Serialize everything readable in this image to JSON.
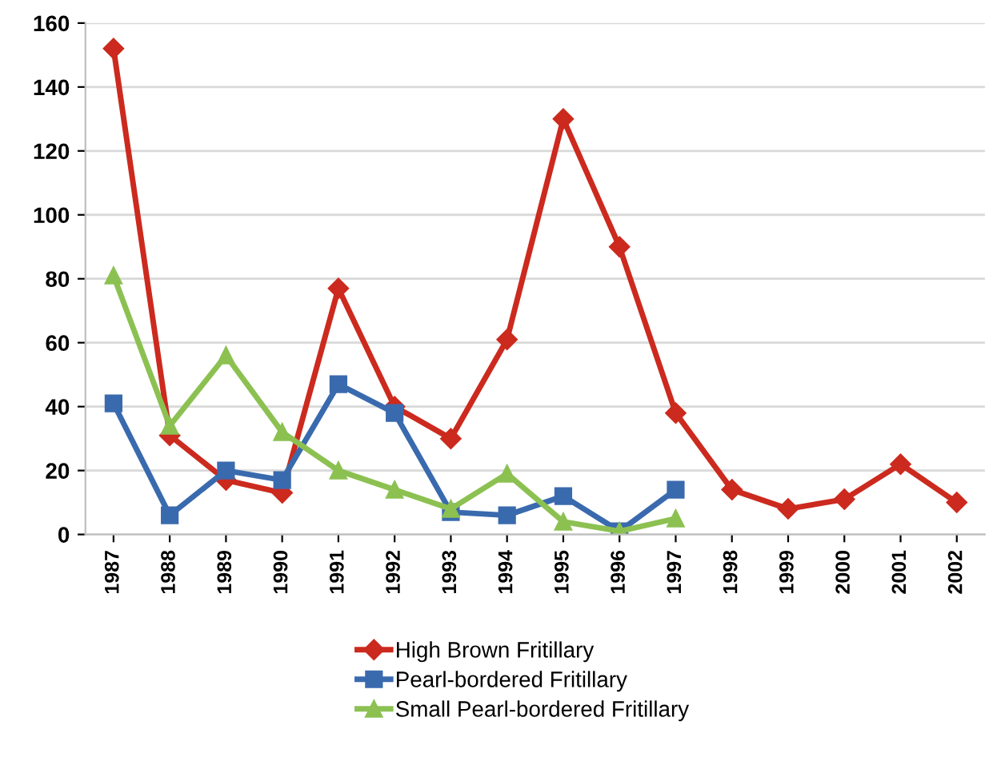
{
  "chart_data": {
    "type": "line",
    "categories": [
      "1987",
      "1988",
      "1989",
      "1990",
      "1991",
      "1992",
      "1993",
      "1994",
      "1995",
      "1996",
      "1997",
      "1998",
      "1999",
      "2000",
      "2001",
      "2002"
    ],
    "series": [
      {
        "name": "High Brown Fritillary",
        "color": "#cc2a1e",
        "marker": "diamond",
        "values": [
          152,
          31,
          17,
          13,
          77,
          40,
          30,
          61,
          130,
          90,
          38,
          14,
          8,
          11,
          22,
          10
        ]
      },
      {
        "name": "Pearl-bordered Fritillary",
        "color": "#3a6aae",
        "marker": "square",
        "values": [
          41,
          6,
          20,
          17,
          47,
          38,
          7,
          6,
          12,
          1,
          14,
          null,
          null,
          null,
          null,
          null
        ]
      },
      {
        "name": "Small Pearl-bordered Fritillary",
        "color": "#8cc152",
        "marker": "triangle",
        "values": [
          81,
          34,
          56,
          32,
          20,
          14,
          8,
          19,
          4,
          1,
          5,
          null,
          null,
          null,
          null,
          null
        ]
      }
    ],
    "ylim": [
      0,
      160
    ],
    "yticks": [
      0,
      20,
      40,
      60,
      80,
      100,
      120,
      140,
      160
    ],
    "grid": "y",
    "legend": "bottom"
  }
}
